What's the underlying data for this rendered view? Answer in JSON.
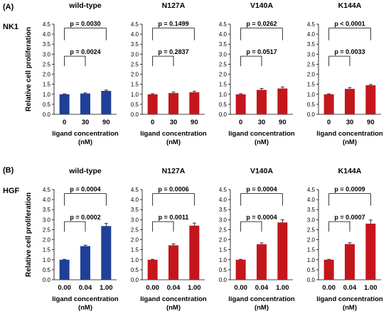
{
  "panels": {
    "a": {
      "label": "(A)",
      "row_label": "NK1"
    },
    "b": {
      "label": "(B)",
      "row_label": "HGF"
    }
  },
  "ylabel": "Relative cell proliferation",
  "xlabel_line1": "ligand concentration",
  "xlabel_line2": "(nM)",
  "colors": {
    "wild_type": "#1f3f99",
    "mutant": "#c4161c"
  },
  "chart_data": [
    {
      "type": "bar",
      "row": "NK1",
      "title": "wild-type",
      "color": "#1f3f99",
      "categories": [
        "0",
        "30",
        "90"
      ],
      "values": [
        1.0,
        1.04,
        1.17
      ],
      "errors": [
        0.02,
        0.03,
        0.04
      ],
      "ylim": [
        0,
        4.5
      ],
      "yticks": [
        "0.0",
        "0.5",
        "1.0",
        "1.5",
        "2.0",
        "2.5",
        "3.0",
        "3.5",
        "4.0",
        "4.5"
      ],
      "p_outer": "p = 0.0030",
      "p_inner": "p = 0.0024"
    },
    {
      "type": "bar",
      "row": "NK1",
      "title": "N127A",
      "color": "#c4161c",
      "categories": [
        "0",
        "30",
        "90"
      ],
      "values": [
        1.0,
        1.06,
        1.1
      ],
      "errors": [
        0.03,
        0.05,
        0.05
      ],
      "ylim": [
        0,
        4.5
      ],
      "yticks": [
        "0.0",
        "0.5",
        "1.0",
        "1.5",
        "2.0",
        "2.5",
        "3.0",
        "3.5",
        "4.0",
        "4.5"
      ],
      "p_outer": "p = 0.1499",
      "p_inner": "p = 0.2837"
    },
    {
      "type": "bar",
      "row": "NK1",
      "title": "V140A",
      "color": "#c4161c",
      "categories": [
        "0",
        "30",
        "90"
      ],
      "values": [
        1.0,
        1.22,
        1.29
      ],
      "errors": [
        0.03,
        0.07,
        0.07
      ],
      "ylim": [
        0,
        4.5
      ],
      "yticks": [
        "0.0",
        "0.5",
        "1.0",
        "1.5",
        "2.0",
        "2.5",
        "3.0",
        "3.5",
        "4.0",
        "4.5"
      ],
      "p_outer": "p = 0.0262",
      "p_inner": "p = 0.0517"
    },
    {
      "type": "bar",
      "row": "NK1",
      "title": "K144A",
      "color": "#c4161c",
      "categories": [
        "0",
        "30",
        "90"
      ],
      "values": [
        1.0,
        1.27,
        1.45
      ],
      "errors": [
        0.02,
        0.07,
        0.04
      ],
      "ylim": [
        0,
        4.5
      ],
      "yticks": [
        "0.0",
        "0.5",
        "1.0",
        "1.5",
        "2.0",
        "2.5",
        "3.0",
        "3.5",
        "4.0",
        "4.5"
      ],
      "p_outer": "p < 0.0001",
      "p_inner": "p = 0.0033"
    },
    {
      "type": "bar",
      "row": "HGF",
      "title": "wild-type",
      "color": "#1f3f99",
      "categories": [
        "0.00",
        "0.04",
        "1.00"
      ],
      "values": [
        1.0,
        1.68,
        2.68
      ],
      "errors": [
        0.02,
        0.05,
        0.13
      ],
      "ylim": [
        0,
        4.5
      ],
      "yticks": [
        "0.0",
        "0.5",
        "1.0",
        "1.5",
        "2.0",
        "2.5",
        "3.0",
        "3.5",
        "4.0",
        "4.5"
      ],
      "p_outer": "p = 0.0004",
      "p_inner": "p = 0.0002"
    },
    {
      "type": "bar",
      "row": "HGF",
      "title": "N127A",
      "color": "#c4161c",
      "categories": [
        "0.00",
        "0.04",
        "1.00"
      ],
      "values": [
        1.0,
        1.72,
        2.7
      ],
      "errors": [
        0.02,
        0.07,
        0.13
      ],
      "ylim": [
        0,
        4.5
      ],
      "yticks": [
        "0.0",
        "0.5",
        "1.0",
        "1.5",
        "2.0",
        "2.5",
        "3.0",
        "3.5",
        "4.0",
        "4.5"
      ],
      "p_outer": "p = 0.0006",
      "p_inner": "p = 0.0011"
    },
    {
      "type": "bar",
      "row": "HGF",
      "title": "V140A",
      "color": "#c4161c",
      "categories": [
        "0.00",
        "0.04",
        "1.00"
      ],
      "values": [
        1.0,
        1.77,
        2.86
      ],
      "errors": [
        0.02,
        0.07,
        0.14
      ],
      "ylim": [
        0,
        4.5
      ],
      "yticks": [
        "0.0",
        "0.5",
        "1.0",
        "1.5",
        "2.0",
        "2.5",
        "3.0",
        "3.5",
        "4.0",
        "4.5"
      ],
      "p_outer": "p = 0.0004",
      "p_inner": "p = 0.0004"
    },
    {
      "type": "bar",
      "row": "HGF",
      "title": "K144A",
      "color": "#c4161c",
      "categories": [
        "0.00",
        "0.04",
        "1.00"
      ],
      "values": [
        1.0,
        1.78,
        2.8
      ],
      "errors": [
        0.02,
        0.07,
        0.18
      ],
      "ylim": [
        0,
        4.5
      ],
      "yticks": [
        "0.0",
        "0.5",
        "1.0",
        "1.5",
        "2.0",
        "2.5",
        "3.0",
        "3.5",
        "4.0",
        "4.5"
      ],
      "p_outer": "p = 0.0009",
      "p_inner": "p = 0.0007"
    }
  ]
}
